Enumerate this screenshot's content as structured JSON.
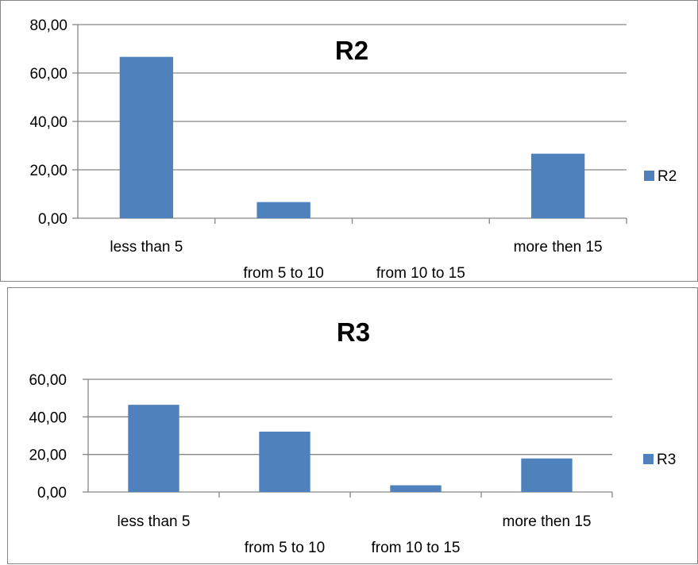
{
  "chart_data": [
    {
      "type": "bar",
      "title": "R2",
      "categories": [
        "less than 5",
        "from 5 to  10",
        "from 10 to  15",
        "more then  15"
      ],
      "series": [
        {
          "name": "R2",
          "values": [
            66.67,
            6.67,
            0.0,
            26.67
          ],
          "color": "#4f81bd"
        }
      ],
      "ylim": [
        0,
        80
      ],
      "yticks": [
        "0,00",
        "20,00",
        "40,00",
        "60,00",
        "80,00"
      ],
      "ytick_values": [
        0,
        20,
        40,
        60,
        80
      ],
      "grid": true,
      "legend": "right"
    },
    {
      "type": "bar",
      "title": "R3",
      "categories": [
        "less than 5",
        "from 5 to  10",
        "from 10 to  15",
        "more then  15"
      ],
      "series": [
        {
          "name": "R3",
          "values": [
            46.43,
            32.14,
            3.57,
            17.86
          ],
          "color": "#4f81bd"
        }
      ],
      "ylim": [
        0,
        60
      ],
      "yticks": [
        "0,00",
        "20,00",
        "40,00",
        "60,00"
      ],
      "ytick_values": [
        0,
        20,
        40,
        60
      ],
      "grid": true,
      "legend": "right"
    }
  ]
}
